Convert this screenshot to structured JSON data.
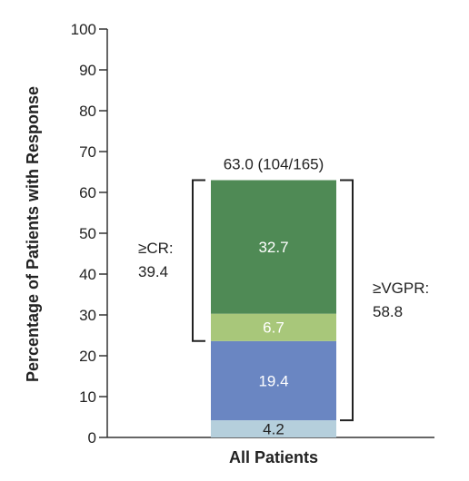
{
  "chart_data": {
    "type": "bar",
    "stacked": true,
    "categories": [
      "All Patients"
    ],
    "xlabel": "All Patients",
    "ylabel": "Percentage of Patients with Response",
    "ylim": [
      0,
      100
    ],
    "yticks": [
      0,
      10,
      20,
      30,
      40,
      50,
      60,
      70,
      80,
      90,
      100
    ],
    "total_label": "63.0 (104/165)",
    "total_value": 63.0,
    "segments": [
      {
        "value": 4.2,
        "label": "4.2",
        "color": "#b5cfdc",
        "text_color": "#222222"
      },
      {
        "value": 19.4,
        "label": "19.4",
        "color": "#6a86c2",
        "text_color": "#ffffff"
      },
      {
        "value": 6.7,
        "label": "6.7",
        "color": "#a8c77a",
        "text_color": "#ffffff"
      },
      {
        "value": 32.7,
        "label": "32.7",
        "color": "#4f8a55",
        "text_color": "#ffffff"
      }
    ],
    "brackets": [
      {
        "side": "left",
        "from": 23.6,
        "to": 63.0,
        "label_lines": [
          "≥CR:",
          "39.4"
        ]
      },
      {
        "side": "right",
        "from": 4.2,
        "to": 63.0,
        "label_lines": [
          "≥VGPR:",
          "58.8"
        ]
      }
    ]
  }
}
